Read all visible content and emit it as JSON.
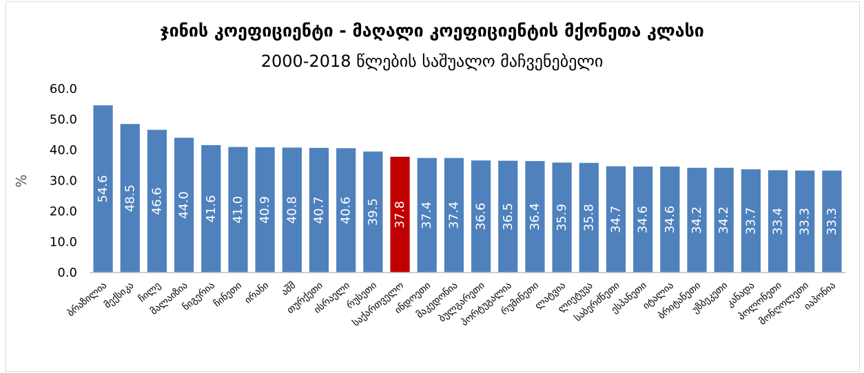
{
  "chart_data": {
    "type": "bar",
    "title": "ჯინის კოეფიციენტი - მაღალი კოეფიციენტის მქონეთა კლასი",
    "subtitle": "2000-2018 წლების საშუალო მაჩვენებელი",
    "ylabel": "%",
    "xlabel": "",
    "ylim": [
      0,
      60
    ],
    "yticks": [
      "0.0",
      "10.0",
      "20.0",
      "30.0",
      "40.0",
      "50.0",
      "60.0"
    ],
    "grid": false,
    "categories": [
      "ბრაზილია",
      "მექსიკა",
      "ჩილე",
      "მალაიზია",
      "ნიგერია",
      "ჩინეთი",
      "ირანი",
      "აშშ",
      "თურქეთი",
      "ისრაელი",
      "რუსეთი",
      "საქართველო",
      "ინდოეთი",
      "მაკედონია",
      "ბულგარეთი",
      "პორტუგალია",
      "რუმინეთი",
      "ლატვია",
      "ლიეტუვა",
      "საბერძნეთი",
      "ესპანეთი",
      "იტალია",
      "ბრიტანეთი",
      "უზბეკეთი",
      "კანადა",
      "პოლონეთი",
      "მონღოლეთი",
      "იაპონია"
    ],
    "values": [
      54.6,
      48.5,
      46.6,
      44.0,
      41.6,
      41.0,
      40.9,
      40.8,
      40.7,
      40.6,
      39.5,
      37.8,
      37.4,
      37.4,
      36.6,
      36.5,
      36.4,
      35.9,
      35.8,
      34.7,
      34.6,
      34.6,
      34.2,
      34.2,
      33.7,
      33.4,
      33.3,
      33.3
    ],
    "value_labels": [
      "54.6",
      "48.5",
      "46.6",
      "44.0",
      "41.6",
      "41.0",
      "40.9",
      "40.8",
      "40.7",
      "40.6",
      "39.5",
      "37.8",
      "37.4",
      "37.4",
      "36.6",
      "36.5",
      "36.4",
      "35.9",
      "35.8",
      "34.7",
      "34.6",
      "34.6",
      "34.2",
      "34.2",
      "33.7",
      "33.4",
      "33.3",
      "33.3"
    ],
    "highlight_index": 11,
    "colors": {
      "bar": "#4f81bd",
      "highlight": "#c00000",
      "axis": "#bfbfbf"
    }
  }
}
